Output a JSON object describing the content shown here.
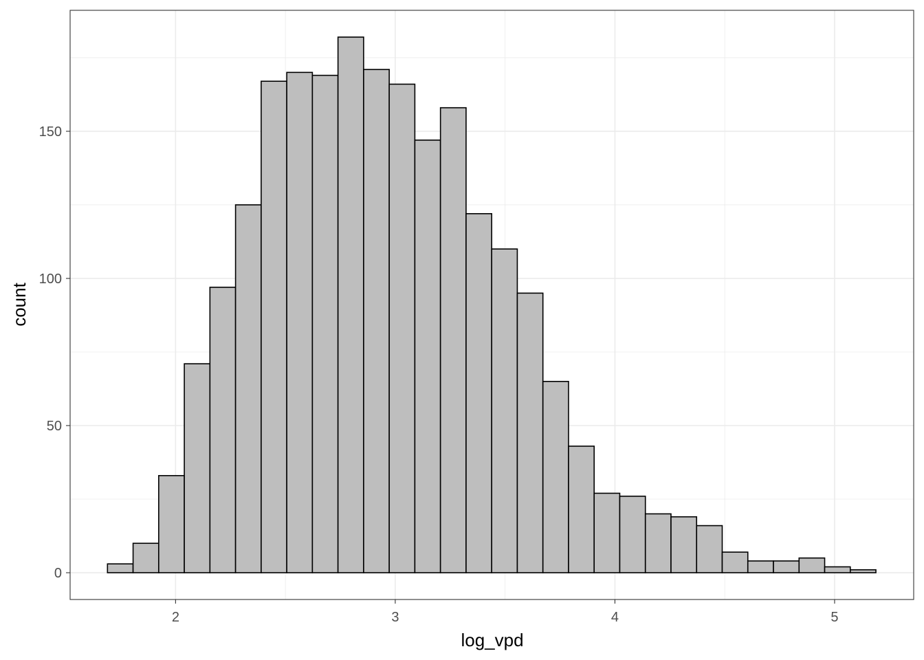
{
  "chart_data": {
    "type": "histogram",
    "xlabel": "log_vpd",
    "ylabel": "count",
    "xlim": [
      1.52,
      5.36
    ],
    "ylim": [
      -9.1,
      191.1
    ],
    "x_ticks": [
      2,
      3,
      4,
      5
    ],
    "y_ticks": [
      0,
      50,
      100,
      150
    ],
    "x_tick_labels": [
      "2",
      "3",
      "4",
      "5"
    ],
    "y_tick_labels": [
      "0",
      "50",
      "100",
      "150"
    ],
    "grid": true,
    "theme": "bw",
    "bin_start": 1.69,
    "bin_width": 0.1166,
    "counts": [
      3,
      10,
      33,
      71,
      97,
      125,
      167,
      170,
      169,
      182,
      171,
      166,
      147,
      158,
      122,
      110,
      95,
      65,
      43,
      27,
      26,
      20,
      19,
      16,
      7,
      4,
      4,
      5,
      2,
      1
    ],
    "bar_fill": "#bebebe",
    "bar_stroke": "#000000",
    "grid_color": "#ebebeb",
    "panel_border": "#333333"
  }
}
